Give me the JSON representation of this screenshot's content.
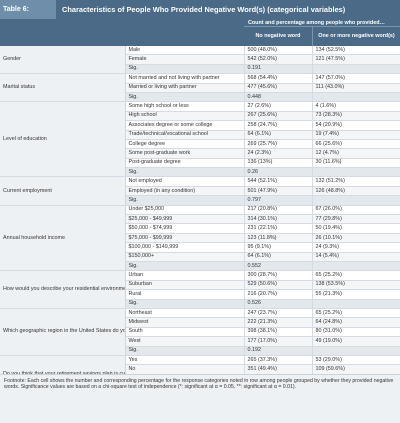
{
  "table": {
    "label": "Table 6:",
    "title": "Characteristics of People Who Provided Negative Word(s) (categorical variables)",
    "header_span": "Count and percentage among people who provided…",
    "col1": "No negative word",
    "col2": "One or more negative word(s)"
  },
  "groups": [
    {
      "name": "Gender",
      "rows": [
        {
          "cat": "Male",
          "v1": "500 (48.0%)",
          "v2": "134 (52.5%)"
        },
        {
          "cat": "Female",
          "v1": "542 (52.0%)",
          "v2": "121 (47.5%)"
        },
        {
          "cat": "Sig.",
          "v1": "0.191",
          "v2": ""
        }
      ]
    },
    {
      "name": "Marital status",
      "rows": [
        {
          "cat": "Not married and not living with partner",
          "v1": "568 (54.4%)",
          "v2": "147 (57.0%)"
        },
        {
          "cat": "Married or living with partner",
          "v1": "477 (45.6%)",
          "v2": "111 (43.0%)"
        },
        {
          "cat": "Sig.",
          "v1": "0.448",
          "v2": ""
        }
      ]
    },
    {
      "name": "Level of education",
      "rows": [
        {
          "cat": "Some high school or less",
          "v1": "27 (2.6%)",
          "v2": "4 (1.6%)"
        },
        {
          "cat": "High school",
          "v1": "267 (25.6%)",
          "v2": "73 (28.3%)"
        },
        {
          "cat": "Associates degree or some college",
          "v1": "258 (24.7%)",
          "v2": "54 (20.9%)"
        },
        {
          "cat": "Trade/technical/vocational school",
          "v1": "64 (6.1%)",
          "v2": "19 (7.4%)"
        },
        {
          "cat": "College degree",
          "v1": "269 (25.7%)",
          "v2": "66 (25.6%)"
        },
        {
          "cat": "Some post-graduate work",
          "v1": "24 (2.3%)",
          "v2": "12 (4.7%)"
        },
        {
          "cat": "Post-graduate degree",
          "v1": "136 (13%)",
          "v2": "30 (11.6%)"
        },
        {
          "cat": "Sig.",
          "v1": "0.26",
          "v2": ""
        }
      ]
    },
    {
      "name": "Current employment",
      "rows": [
        {
          "cat": "Not employed",
          "v1": "544 (52.1%)",
          "v2": "132 (51.2%)"
        },
        {
          "cat": "Employed (in any condition)",
          "v1": "501 (47.9%)",
          "v2": "126 (48.8%)"
        },
        {
          "cat": "Sig.",
          "v1": "0.797",
          "v2": ""
        }
      ]
    },
    {
      "name": "Annual household income",
      "rows": [
        {
          "cat": "Under $25,000",
          "v1": "217 (20.8%)",
          "v2": "67 (26.0%)"
        },
        {
          "cat": "$25,000 - $49,999",
          "v1": "314 (30.1%)",
          "v2": "77 (29.8%)"
        },
        {
          "cat": "$50,000 - $74,999",
          "v1": "231 (22.1%)",
          "v2": "50 (19.4%)"
        },
        {
          "cat": "$75,000 - $99,999",
          "v1": "123 (11.8%)",
          "v2": "26 (10.1%)"
        },
        {
          "cat": "$100,000 - $149,999",
          "v1": "95 (9.1%)",
          "v2": "24 (9.3%)"
        },
        {
          "cat": "$150,000+",
          "v1": "64 (6.1%)",
          "v2": "14 (5.4%)"
        },
        {
          "cat": "Sig.",
          "v1": "0.552",
          "v2": ""
        }
      ]
    },
    {
      "name": "How would you describe your residential environment?",
      "rows": [
        {
          "cat": "Urban",
          "v1": "300 (28.7%)",
          "v2": "65 (25.2%)"
        },
        {
          "cat": "Suburban",
          "v1": "529 (50.6%)",
          "v2": "138 (53.5%)"
        },
        {
          "cat": "Rural",
          "v1": "216 (20.7%)",
          "v2": "55 (21.3%)"
        },
        {
          "cat": "Sig.",
          "v1": "0.526",
          "v2": ""
        }
      ]
    },
    {
      "name": "Which geographic region in the United States do you live in?",
      "rows": [
        {
          "cat": "Northeast",
          "v1": "247 (23.7%)",
          "v2": "65 (25.2%)"
        },
        {
          "cat": "Midwest",
          "v1": "222 (21.3%)",
          "v2": "64 (24.8%)"
        },
        {
          "cat": "South",
          "v1": "398 (38.1%)",
          "v2": "80 (31.0%)"
        },
        {
          "cat": "West",
          "v1": "177 (17.0%)",
          "v2": "49 (19.0%)"
        },
        {
          "cat": "Sig.",
          "v1": "0.192",
          "v2": ""
        }
      ]
    },
    {
      "name": "Do you think that your retirement savings plan is currently on track?",
      "rows": [
        {
          "cat": "Yes",
          "v1": "265 (37.3%)",
          "v2": "53 (29.0%)"
        },
        {
          "cat": "No",
          "v1": "351 (49.4%)",
          "v2": "109 (59.6%)"
        },
        {
          "cat": "Don't know",
          "v1": "94 (13.2%)",
          "v2": "21 (11.5%)"
        },
        {
          "cat": "Sig.",
          "v1": "0.047",
          "v2": ""
        }
      ]
    },
    {
      "name": "Experience of loneliness",
      "rows": [
        {
          "cat": "Not lonely",
          "v1": "604 (57.8%)",
          "v2": "106 (41.1%)"
        },
        {
          "cat": "Lonely",
          "v1": "441 (42.2%)",
          "v2": "152 (58.9%)"
        },
        {
          "cat": "Sig.",
          "v1": "<0.001",
          "v2": ""
        }
      ]
    }
  ],
  "footnote": "Footnote: Each cell shows the number and corresponding percentage for the response categories noted in row among people grouped by whether they provided negative words. Significance values are based on a chi-square test of independence (*: significant at α = 0.05, **: significant at α = 0.01)."
}
